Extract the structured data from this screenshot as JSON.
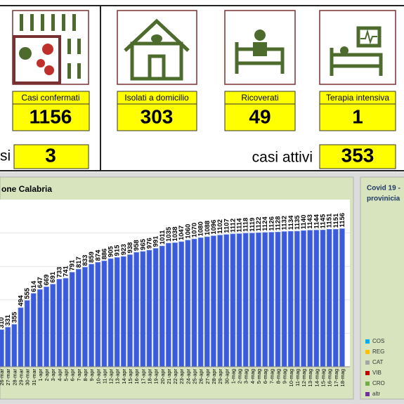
{
  "cards": [
    {
      "label": "Casi confermati",
      "value": 1156
    },
    {
      "label": "Isolati a domicilio",
      "value": 303
    },
    {
      "label": "Ricoverati",
      "value": 49
    },
    {
      "label": "Terapia intensiva",
      "value": 1
    }
  ],
  "summary": {
    "left_label": "si",
    "left_value": 3,
    "right_label": "casi attivi",
    "right_value": 353
  },
  "chart_data": {
    "type": "bar",
    "title": "one Calabria",
    "color": "#3b5bdb",
    "ylim": [
      0,
      1400
    ],
    "categories": [
      "26-mar",
      "27-mar",
      "28-mar",
      "29-mar",
      "30-mar",
      "31-mar",
      "1-apr",
      "2-apr",
      "3-apr",
      "4-apr",
      "5-apr",
      "6-apr",
      "7-apr",
      "8-apr",
      "9-apr",
      "10-apr",
      "11-apr",
      "12-apr",
      "13-apr",
      "14-apr",
      "15-apr",
      "16-apr",
      "17-apr",
      "18-apr",
      "19-apr",
      "20-apr",
      "21-apr",
      "22-apr",
      "23-apr",
      "24-apr",
      "25-apr",
      "26-apr",
      "27-apr",
      "28-apr",
      "29-apr",
      "30-apr",
      "1-mag",
      "2-mag",
      "3-mag",
      "4-mag",
      "5-mag",
      "6-mag",
      "7-mag",
      "8-mag",
      "9-mag",
      "10-mag",
      "11-mag",
      "12-mag",
      "13-mag",
      "14-mag",
      "15-mag",
      "16-mag",
      "17-mag",
      "18-mag"
    ],
    "values": [
      310,
      331,
      355,
      494,
      555,
      614,
      647,
      669,
      691,
      733,
      741,
      791,
      817,
      833,
      859,
      874,
      886,
      905,
      915,
      923,
      938,
      958,
      965,
      976,
      991,
      1011,
      1035,
      1038,
      1047,
      1060,
      1070,
      1080,
      1088,
      1096,
      1102,
      1107,
      1112,
      1114,
      1118,
      1119,
      1122,
      1124,
      1126,
      1128,
      1132,
      1134,
      1135,
      1140,
      1143,
      1144,
      1145,
      1151,
      1151,
      1156
    ]
  },
  "side_panel": {
    "title_lines": [
      "Covid 19 -",
      "provinicia"
    ],
    "legend": [
      {
        "name": "COS",
        "color": "#00b0f0"
      },
      {
        "name": "REG",
        "color": "#ffc000"
      },
      {
        "name": "CAT",
        "color": "#a5a5a5"
      },
      {
        "name": "VIB",
        "color": "#c00000"
      },
      {
        "name": "CRO",
        "color": "#70ad47"
      },
      {
        "name": "altr",
        "color": "#7030a0"
      }
    ]
  }
}
